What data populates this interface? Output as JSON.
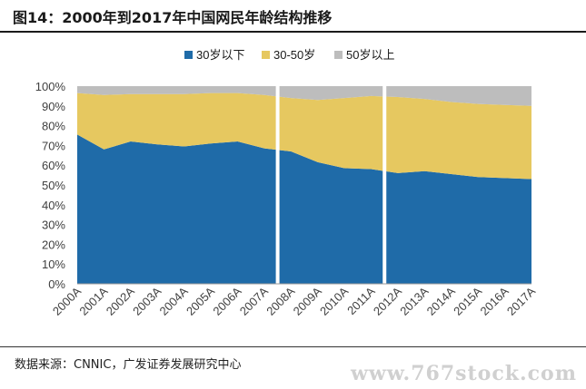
{
  "title": "图14：2000年到2017年中国网民年龄结构推移",
  "source": "数据来源：CNNIC，广发证券发展研究中心",
  "watermark": "www.767stock.com",
  "colors": {
    "under30": "#1f6ba8",
    "mid": "#e6c860",
    "over50": "#bdbdbd",
    "separator": "#ffffff",
    "axis_text": "#404040"
  },
  "chart_data": {
    "type": "area",
    "stacked": true,
    "x": [
      "2000A",
      "2001A",
      "2002A",
      "2003A",
      "2004A",
      "2005A",
      "2006A",
      "2007A",
      "2008A",
      "2009A",
      "2010A",
      "2011A",
      "2012A",
      "2013A",
      "2014A",
      "2015A",
      "2016A",
      "2017A"
    ],
    "series": [
      {
        "name": "30岁以下",
        "values": [
          75.5,
          68,
          72,
          70.5,
          69.5,
          71,
          72,
          68.5,
          67,
          61.5,
          58.5,
          58,
          56,
          57,
          55.5,
          54,
          53.5,
          53
        ],
        "color": "#1f6ba8"
      },
      {
        "name": "30-50岁",
        "values": [
          21,
          27.5,
          24,
          25.5,
          26.5,
          25.5,
          24.5,
          27,
          27,
          31.5,
          35.5,
          37,
          38.5,
          36.5,
          36.5,
          37,
          37,
          37
        ]
      },
      {
        "name": "50岁以上",
        "values": [
          3.5,
          4.5,
          4,
          4,
          4,
          3.5,
          3.5,
          4.5,
          6,
          7,
          6,
          5,
          5.5,
          6.5,
          8,
          9,
          9.5,
          10
        ]
      }
    ],
    "ylim": [
      0,
      100
    ],
    "yticks": [
      "0%",
      "10%",
      "20%",
      "30%",
      "40%",
      "50%",
      "60%",
      "70%",
      "80%",
      "90%",
      "100%"
    ],
    "separators_after": [
      "2007A",
      "2011A"
    ],
    "legend_position": "top",
    "grid": false
  }
}
